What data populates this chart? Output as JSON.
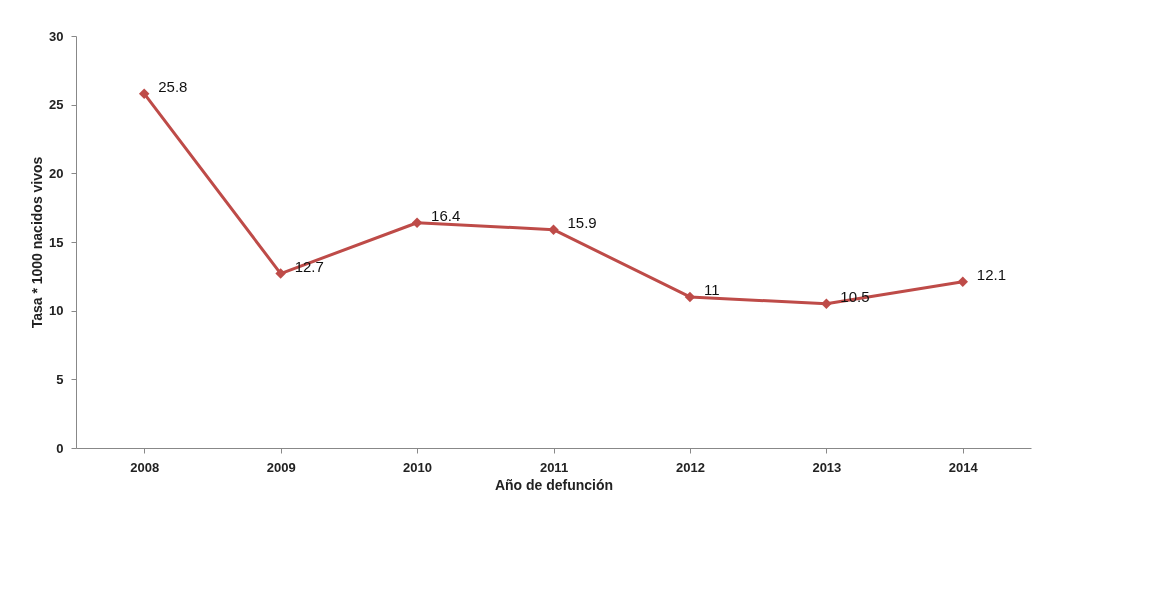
{
  "chart_data": {
    "type": "line",
    "xlabel": "Año de defunción",
    "ylabel": "Tasa * 1000 nacidos vivos",
    "categories": [
      "2008",
      "2009",
      "2010",
      "2011",
      "2012",
      "2013",
      "2014"
    ],
    "series": [
      {
        "color": "#be4b48",
        "values": [
          25.8,
          12.7,
          16.4,
          15.9,
          11,
          10.5,
          12.1
        ]
      }
    ],
    "ylim": [
      0,
      30
    ],
    "yticks": [
      0,
      5,
      10,
      15,
      20,
      25,
      30
    ],
    "grid": false,
    "marker": "diamond",
    "line_style": "solid",
    "data_labels": true
  }
}
